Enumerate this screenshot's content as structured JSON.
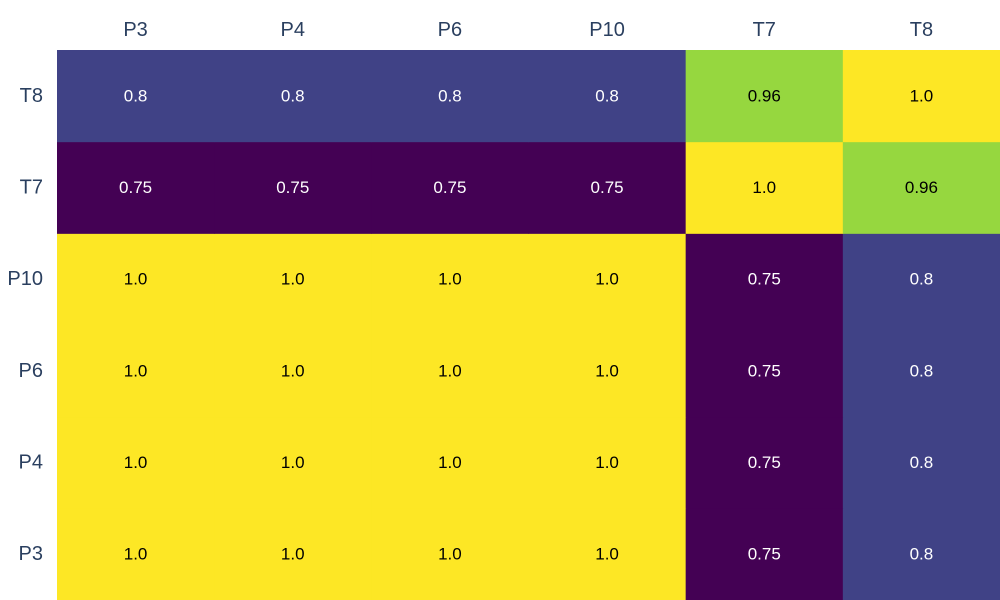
{
  "chart_data": {
    "type": "heatmap",
    "x": [
      "P3",
      "P4",
      "P6",
      "P10",
      "T7",
      "T8"
    ],
    "y": [
      "P3",
      "P4",
      "P6",
      "P10",
      "T7",
      "T8"
    ],
    "z": [
      [
        1.0,
        1.0,
        1.0,
        1.0,
        0.75,
        0.8
      ],
      [
        1.0,
        1.0,
        1.0,
        1.0,
        0.75,
        0.8
      ],
      [
        1.0,
        1.0,
        1.0,
        1.0,
        0.75,
        0.8
      ],
      [
        1.0,
        1.0,
        1.0,
        1.0,
        0.75,
        0.8
      ],
      [
        0.75,
        0.75,
        0.75,
        0.75,
        1.0,
        0.96
      ],
      [
        0.8,
        0.8,
        0.8,
        0.8,
        0.96,
        1.0
      ]
    ],
    "labels": [
      [
        "1.0",
        "1.0",
        "1.0",
        "1.0",
        "0.75",
        "0.8"
      ],
      [
        "1.0",
        "1.0",
        "1.0",
        "1.0",
        "0.75",
        "0.8"
      ],
      [
        "1.0",
        "1.0",
        "1.0",
        "1.0",
        "0.75",
        "0.8"
      ],
      [
        "1.0",
        "1.0",
        "1.0",
        "1.0",
        "0.75",
        "0.8"
      ],
      [
        "0.75",
        "0.75",
        "0.75",
        "0.75",
        "1.0",
        "0.96"
      ],
      [
        "0.8",
        "0.8",
        "0.8",
        "0.8",
        "0.96",
        "1.0"
      ]
    ],
    "x_axis_position": "top",
    "y_axis_order": "bottom-to-top",
    "colorscale": "viridis",
    "zlim": [
      0.75,
      1.0
    ],
    "title": "",
    "xlabel": "",
    "ylabel": ""
  }
}
